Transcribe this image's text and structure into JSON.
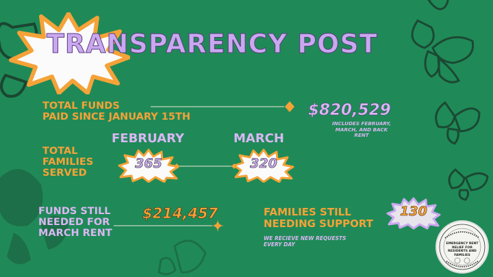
{
  "title": "TRANSPARENCY POST",
  "total_funds": {
    "label_line1": "TOTAL FUNDS",
    "label_line2": "PAID SINCE JANUARY 15TH",
    "amount": "$820,529",
    "note_line1": "INCLUDES FEBRUARY,",
    "note_line2": "MARCH, AND BACK RENT"
  },
  "families_served": {
    "label_line1": "TOTAL",
    "label_line2": "FAMILIES",
    "label_line3": "SERVED",
    "month1": "FEBRUARY",
    "value1": "365",
    "month2": "MARCH",
    "value2": "320"
  },
  "funds_still_needed": {
    "label_line1": "FUNDS STILL",
    "label_line2": "NEEDED FOR",
    "label_line3": "MARCH RENT",
    "amount": "$214,457"
  },
  "families_still_needing": {
    "label_line1": "FAMILIES STILL",
    "label_line2": "NEEDING SUPPORT",
    "value": "130",
    "note_line1": "WE RECIEVE NEW REQUESTS",
    "note_line2": "EVERY DAY"
  },
  "logo": {
    "text_line1": "EMERGENCY RENT RELIEF FOR",
    "text_line2": "RESIDENTS AND FAMILIES"
  },
  "colors": {
    "background": "#1f8a57",
    "orange": "#f5a238",
    "lavender": "#d9b7f3",
    "butterfly": "#1b3a2c"
  }
}
